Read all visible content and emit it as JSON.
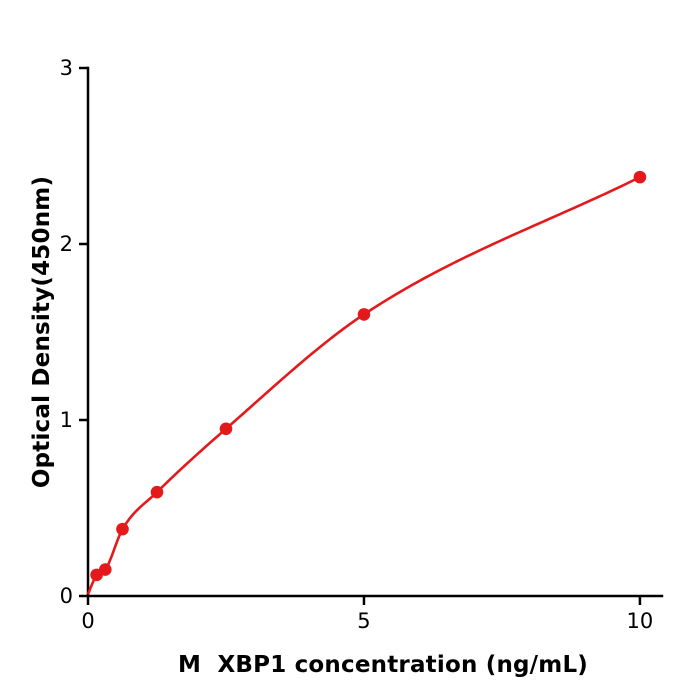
{
  "chart_data": {
    "type": "scatter",
    "title": "",
    "xlabel": "M  XBP1 concentration (ng/mL)",
    "ylabel": "Optical Density(450nm)",
    "x": [
      0.156,
      0.313,
      0.625,
      1.25,
      2.5,
      5,
      10
    ],
    "y": [
      0.12,
      0.15,
      0.38,
      0.59,
      0.95,
      1.6,
      2.38
    ],
    "curve_anchor": {
      "x": 0,
      "y": 0.01
    },
    "xlim": [
      0,
      10.4
    ],
    "ylim": [
      0,
      3
    ],
    "xticks": [
      0,
      5,
      10
    ],
    "xtick_labels": [
      "0",
      "5",
      "10"
    ],
    "yticks": [
      0,
      1,
      2,
      3
    ],
    "ytick_labels": [
      "0",
      "1",
      "2",
      "3"
    ],
    "point_color": "#e4191c",
    "curve_color": "#e4191c",
    "axis_color": "#000000",
    "legend": "none",
    "grid": "off",
    "curve_fit": "smooth saturating curve through data points (ELISA standard curve)"
  }
}
